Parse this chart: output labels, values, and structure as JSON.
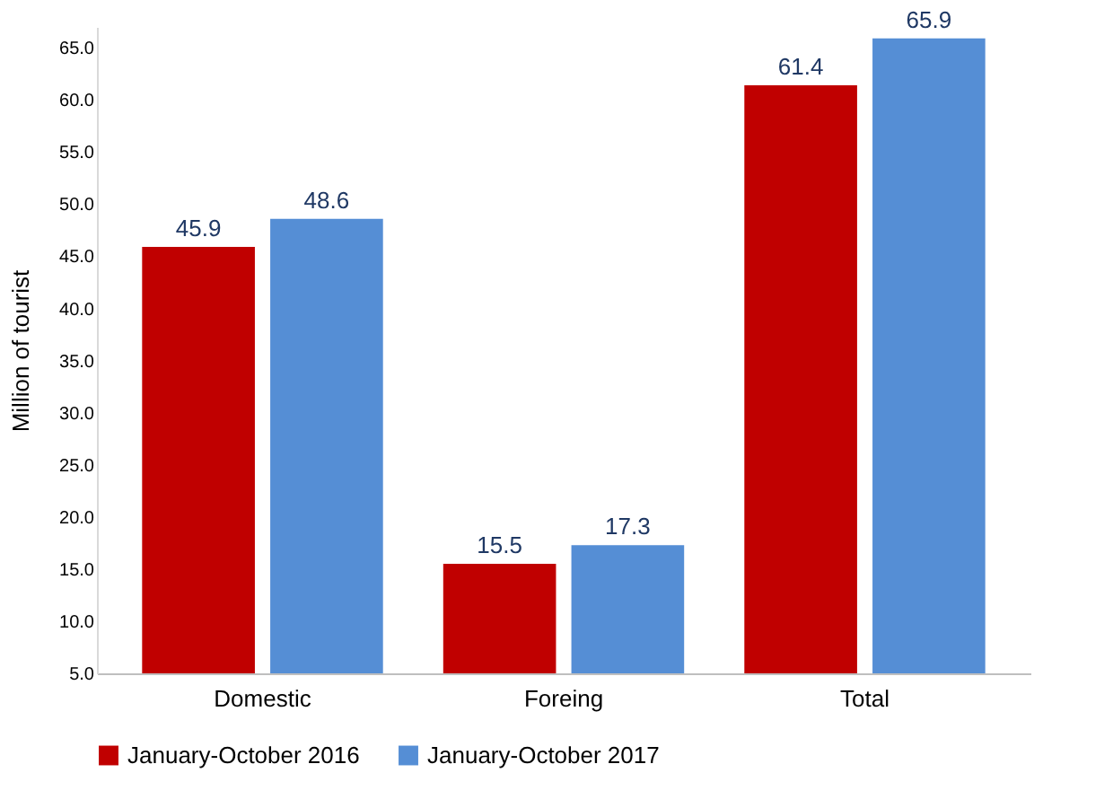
{
  "chart_data": {
    "type": "bar",
    "ylabel": "Million of tourist",
    "categories": [
      "Domestic",
      "Foreing",
      "Total"
    ],
    "series": [
      {
        "name": "January-October 2016",
        "color": "#c00000",
        "values": [
          45.9,
          15.5,
          61.4
        ]
      },
      {
        "name": "January-October 2017",
        "color": "#558ed5",
        "values": [
          48.6,
          17.3,
          65.9
        ]
      }
    ],
    "ylim": [
      5,
      67
    ],
    "yticks": [
      {
        "value": 5,
        "label": "5.0"
      },
      {
        "value": 10,
        "label": "10.0"
      },
      {
        "value": 15,
        "label": "15.0"
      },
      {
        "value": 20,
        "label": "20.0"
      },
      {
        "value": 25,
        "label": "25.0"
      },
      {
        "value": 30,
        "label": "30.0"
      },
      {
        "value": 35,
        "label": "35.0"
      },
      {
        "value": 40,
        "label": "40.0"
      },
      {
        "value": 45,
        "label": "45.0"
      },
      {
        "value": 50,
        "label": "50.0"
      },
      {
        "value": 55,
        "label": "55.0"
      },
      {
        "value": 60,
        "label": "60.0"
      },
      {
        "value": 65,
        "label": "65.0"
      }
    ],
    "data_labels": true,
    "grid": false,
    "legend": "bottom"
  }
}
